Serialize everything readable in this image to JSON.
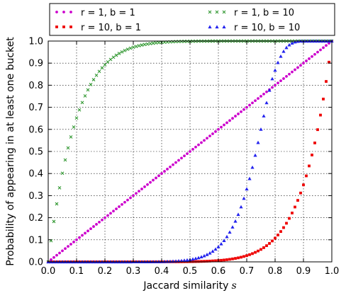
{
  "chart_data": {
    "type": "scatter",
    "xlabel": "Jaccard similarity",
    "xlabel_var": "s",
    "ylabel": "Probability of appearing in at least one bucket",
    "xlim": [
      0.0,
      1.0
    ],
    "ylim": [
      0.0,
      1.0
    ],
    "x_ticks": [
      "0.0",
      "0.1",
      "0.2",
      "0.3",
      "0.4",
      "0.5",
      "0.6",
      "0.7",
      "0.8",
      "0.9",
      "1.0"
    ],
    "y_ticks": [
      "0.0",
      "0.1",
      "0.2",
      "0.3",
      "0.4",
      "0.5",
      "0.6",
      "0.7",
      "0.8",
      "0.9",
      "1.0"
    ],
    "grid": true,
    "legend_position": "top",
    "x": [
      0.0,
      0.01,
      0.02,
      0.03,
      0.04,
      0.05,
      0.06,
      0.07,
      0.08,
      0.09,
      0.1,
      0.11,
      0.12,
      0.13,
      0.14,
      0.15,
      0.16,
      0.17,
      0.18,
      0.19,
      0.2,
      0.21,
      0.22,
      0.23,
      0.24,
      0.25,
      0.26,
      0.27,
      0.28,
      0.29,
      0.3,
      0.31,
      0.32,
      0.33,
      0.34,
      0.35,
      0.36,
      0.37,
      0.38,
      0.39,
      0.4,
      0.41,
      0.42,
      0.43,
      0.44,
      0.45,
      0.46,
      0.47,
      0.48,
      0.49,
      0.5,
      0.51,
      0.52,
      0.53,
      0.54,
      0.55,
      0.56,
      0.57,
      0.58,
      0.59,
      0.6,
      0.61,
      0.62,
      0.63,
      0.64,
      0.65,
      0.66,
      0.67,
      0.68,
      0.69,
      0.7,
      0.71,
      0.72,
      0.73,
      0.74,
      0.75,
      0.76,
      0.77,
      0.78,
      0.79,
      0.8,
      0.81,
      0.82,
      0.83,
      0.84,
      0.85,
      0.86,
      0.87,
      0.88,
      0.89,
      0.9,
      0.91,
      0.92,
      0.93,
      0.94,
      0.95,
      0.96,
      0.97,
      0.98,
      0.99,
      1.0
    ],
    "series": [
      {
        "name": "r = 1, b = 1",
        "color": "#cc00cc",
        "marker": "circle",
        "values": [
          0.0,
          0.01,
          0.02,
          0.03,
          0.04,
          0.05,
          0.06,
          0.07,
          0.08,
          0.09,
          0.1,
          0.11,
          0.12,
          0.13,
          0.14,
          0.15,
          0.16,
          0.17,
          0.18,
          0.19,
          0.2,
          0.21,
          0.22,
          0.23,
          0.24,
          0.25,
          0.26,
          0.27,
          0.28,
          0.29,
          0.3,
          0.31,
          0.32,
          0.33,
          0.34,
          0.35,
          0.36,
          0.37,
          0.38,
          0.39,
          0.4,
          0.41,
          0.42,
          0.43,
          0.44,
          0.45,
          0.46,
          0.47,
          0.48,
          0.49,
          0.5,
          0.51,
          0.52,
          0.53,
          0.54,
          0.55,
          0.56,
          0.57,
          0.58,
          0.59,
          0.6,
          0.61,
          0.62,
          0.63,
          0.64,
          0.65,
          0.66,
          0.67,
          0.68,
          0.69,
          0.7,
          0.71,
          0.72,
          0.73,
          0.74,
          0.75,
          0.76,
          0.77,
          0.78,
          0.79,
          0.8,
          0.81,
          0.82,
          0.83,
          0.84,
          0.85,
          0.86,
          0.87,
          0.88,
          0.89,
          0.9,
          0.91,
          0.92,
          0.93,
          0.94,
          0.95,
          0.96,
          0.97,
          0.98,
          0.99,
          1.0
        ]
      },
      {
        "name": "r = 10, b = 1",
        "color": "#ee0000",
        "marker": "square",
        "values": [
          0.0,
          0.0,
          0.0,
          0.0,
          0.0,
          0.0,
          0.0,
          0.0,
          0.0,
          0.0,
          0.0,
          0.0,
          0.0,
          0.0,
          0.0,
          0.0,
          0.0,
          0.0,
          0.0,
          0.0,
          0.0,
          0.0,
          0.0,
          0.0,
          0.0,
          0.0,
          0.0,
          0.0,
          0.0,
          0.0,
          0.0,
          0.0,
          0.0,
          0.0,
          0.0,
          0.0,
          0.0,
          0.0,
          0.0,
          0.0,
          0.0001,
          0.0001,
          0.0002,
          0.0002,
          0.0003,
          0.0003,
          0.0004,
          0.0005,
          0.0007,
          0.0008,
          0.001,
          0.0012,
          0.0014,
          0.0017,
          0.0021,
          0.0025,
          0.003,
          0.0036,
          0.0043,
          0.0051,
          0.006,
          0.0071,
          0.0084,
          0.0098,
          0.0115,
          0.0135,
          0.0157,
          0.0182,
          0.0211,
          0.0245,
          0.0282,
          0.0326,
          0.0374,
          0.043,
          0.0492,
          0.0563,
          0.0643,
          0.0733,
          0.0834,
          0.0947,
          0.1074,
          0.1216,
          0.1374,
          0.1552,
          0.1749,
          0.1969,
          0.2213,
          0.2484,
          0.2785,
          0.3118,
          0.3487,
          0.3894,
          0.4344,
          0.484,
          0.5386,
          0.5987,
          0.6648,
          0.7374,
          0.8171,
          0.9044,
          1.0
        ]
      },
      {
        "name": "r = 1, b = 10",
        "color": "#339933",
        "marker": "x",
        "values": [
          0.0,
          0.0956,
          0.1829,
          0.2626,
          0.3352,
          0.4013,
          0.4614,
          0.516,
          0.5656,
          0.6106,
          0.6513,
          0.6882,
          0.7215,
          0.7516,
          0.7787,
          0.8031,
          0.8251,
          0.8448,
          0.8626,
          0.8784,
          0.8926,
          0.9053,
          0.9167,
          0.9267,
          0.9357,
          0.9437,
          0.9508,
          0.957,
          0.9626,
          0.9674,
          0.9718,
          0.9755,
          0.9789,
          0.9818,
          0.9843,
          0.9865,
          0.9885,
          0.9902,
          0.9916,
          0.9929,
          0.994,
          0.9949,
          0.9957,
          0.9964,
          0.997,
          0.9975,
          0.9979,
          0.9983,
          0.9986,
          0.9988,
          0.999,
          0.9992,
          0.9993,
          0.9995,
          0.9996,
          0.9997,
          0.9997,
          0.9998,
          0.9998,
          0.9999,
          0.9999,
          0.9999,
          0.9999,
          1.0,
          1.0,
          1.0,
          1.0,
          1.0,
          1.0,
          1.0,
          1.0,
          1.0,
          1.0,
          1.0,
          1.0,
          1.0,
          1.0,
          1.0,
          1.0,
          1.0,
          1.0,
          1.0,
          1.0,
          1.0,
          1.0,
          1.0,
          1.0,
          1.0,
          1.0,
          1.0,
          1.0,
          1.0,
          1.0,
          1.0,
          1.0,
          1.0,
          1.0,
          1.0,
          1.0,
          1.0,
          1.0
        ]
      },
      {
        "name": "r = 10, b = 10",
        "color": "#2222ee",
        "marker": "triangle",
        "values": [
          0.0,
          0.0,
          0.0,
          0.0,
          0.0,
          0.0,
          0.0,
          0.0,
          0.0,
          0.0,
          0.0,
          0.0,
          0.0,
          0.0,
          0.0,
          0.0,
          0.0,
          0.0,
          0.0,
          0.0,
          0.0,
          0.0,
          0.0,
          0.0,
          0.0,
          0.0,
          0.0,
          0.0,
          0.0,
          0.0,
          0.0001,
          0.0001,
          0.0001,
          0.0002,
          0.0002,
          0.0003,
          0.0004,
          0.0005,
          0.0006,
          0.0008,
          0.001,
          0.0013,
          0.0017,
          0.0022,
          0.0027,
          0.0034,
          0.0043,
          0.0054,
          0.0067,
          0.0083,
          0.0102,
          0.0125,
          0.0153,
          0.0187,
          0.0227,
          0.0275,
          0.0332,
          0.04,
          0.048,
          0.0574,
          0.0685,
          0.0814,
          0.0965,
          0.114,
          0.1343,
          0.1576,
          0.1843,
          0.2147,
          0.2489,
          0.2874,
          0.3301,
          0.377,
          0.428,
          0.4827,
          0.5404,
          0.6004,
          0.6609,
          0.7206,
          0.7772,
          0.829,
          0.8678,
          0.9026,
          0.9309,
          0.9534,
          0.9704,
          0.9826,
          0.9908,
          0.9959,
          0.9985,
          0.9997,
          0.9999,
          1.0,
          1.0,
          1.0,
          1.0,
          1.0,
          1.0,
          1.0,
          1.0,
          1.0,
          1.0
        ]
      }
    ]
  }
}
